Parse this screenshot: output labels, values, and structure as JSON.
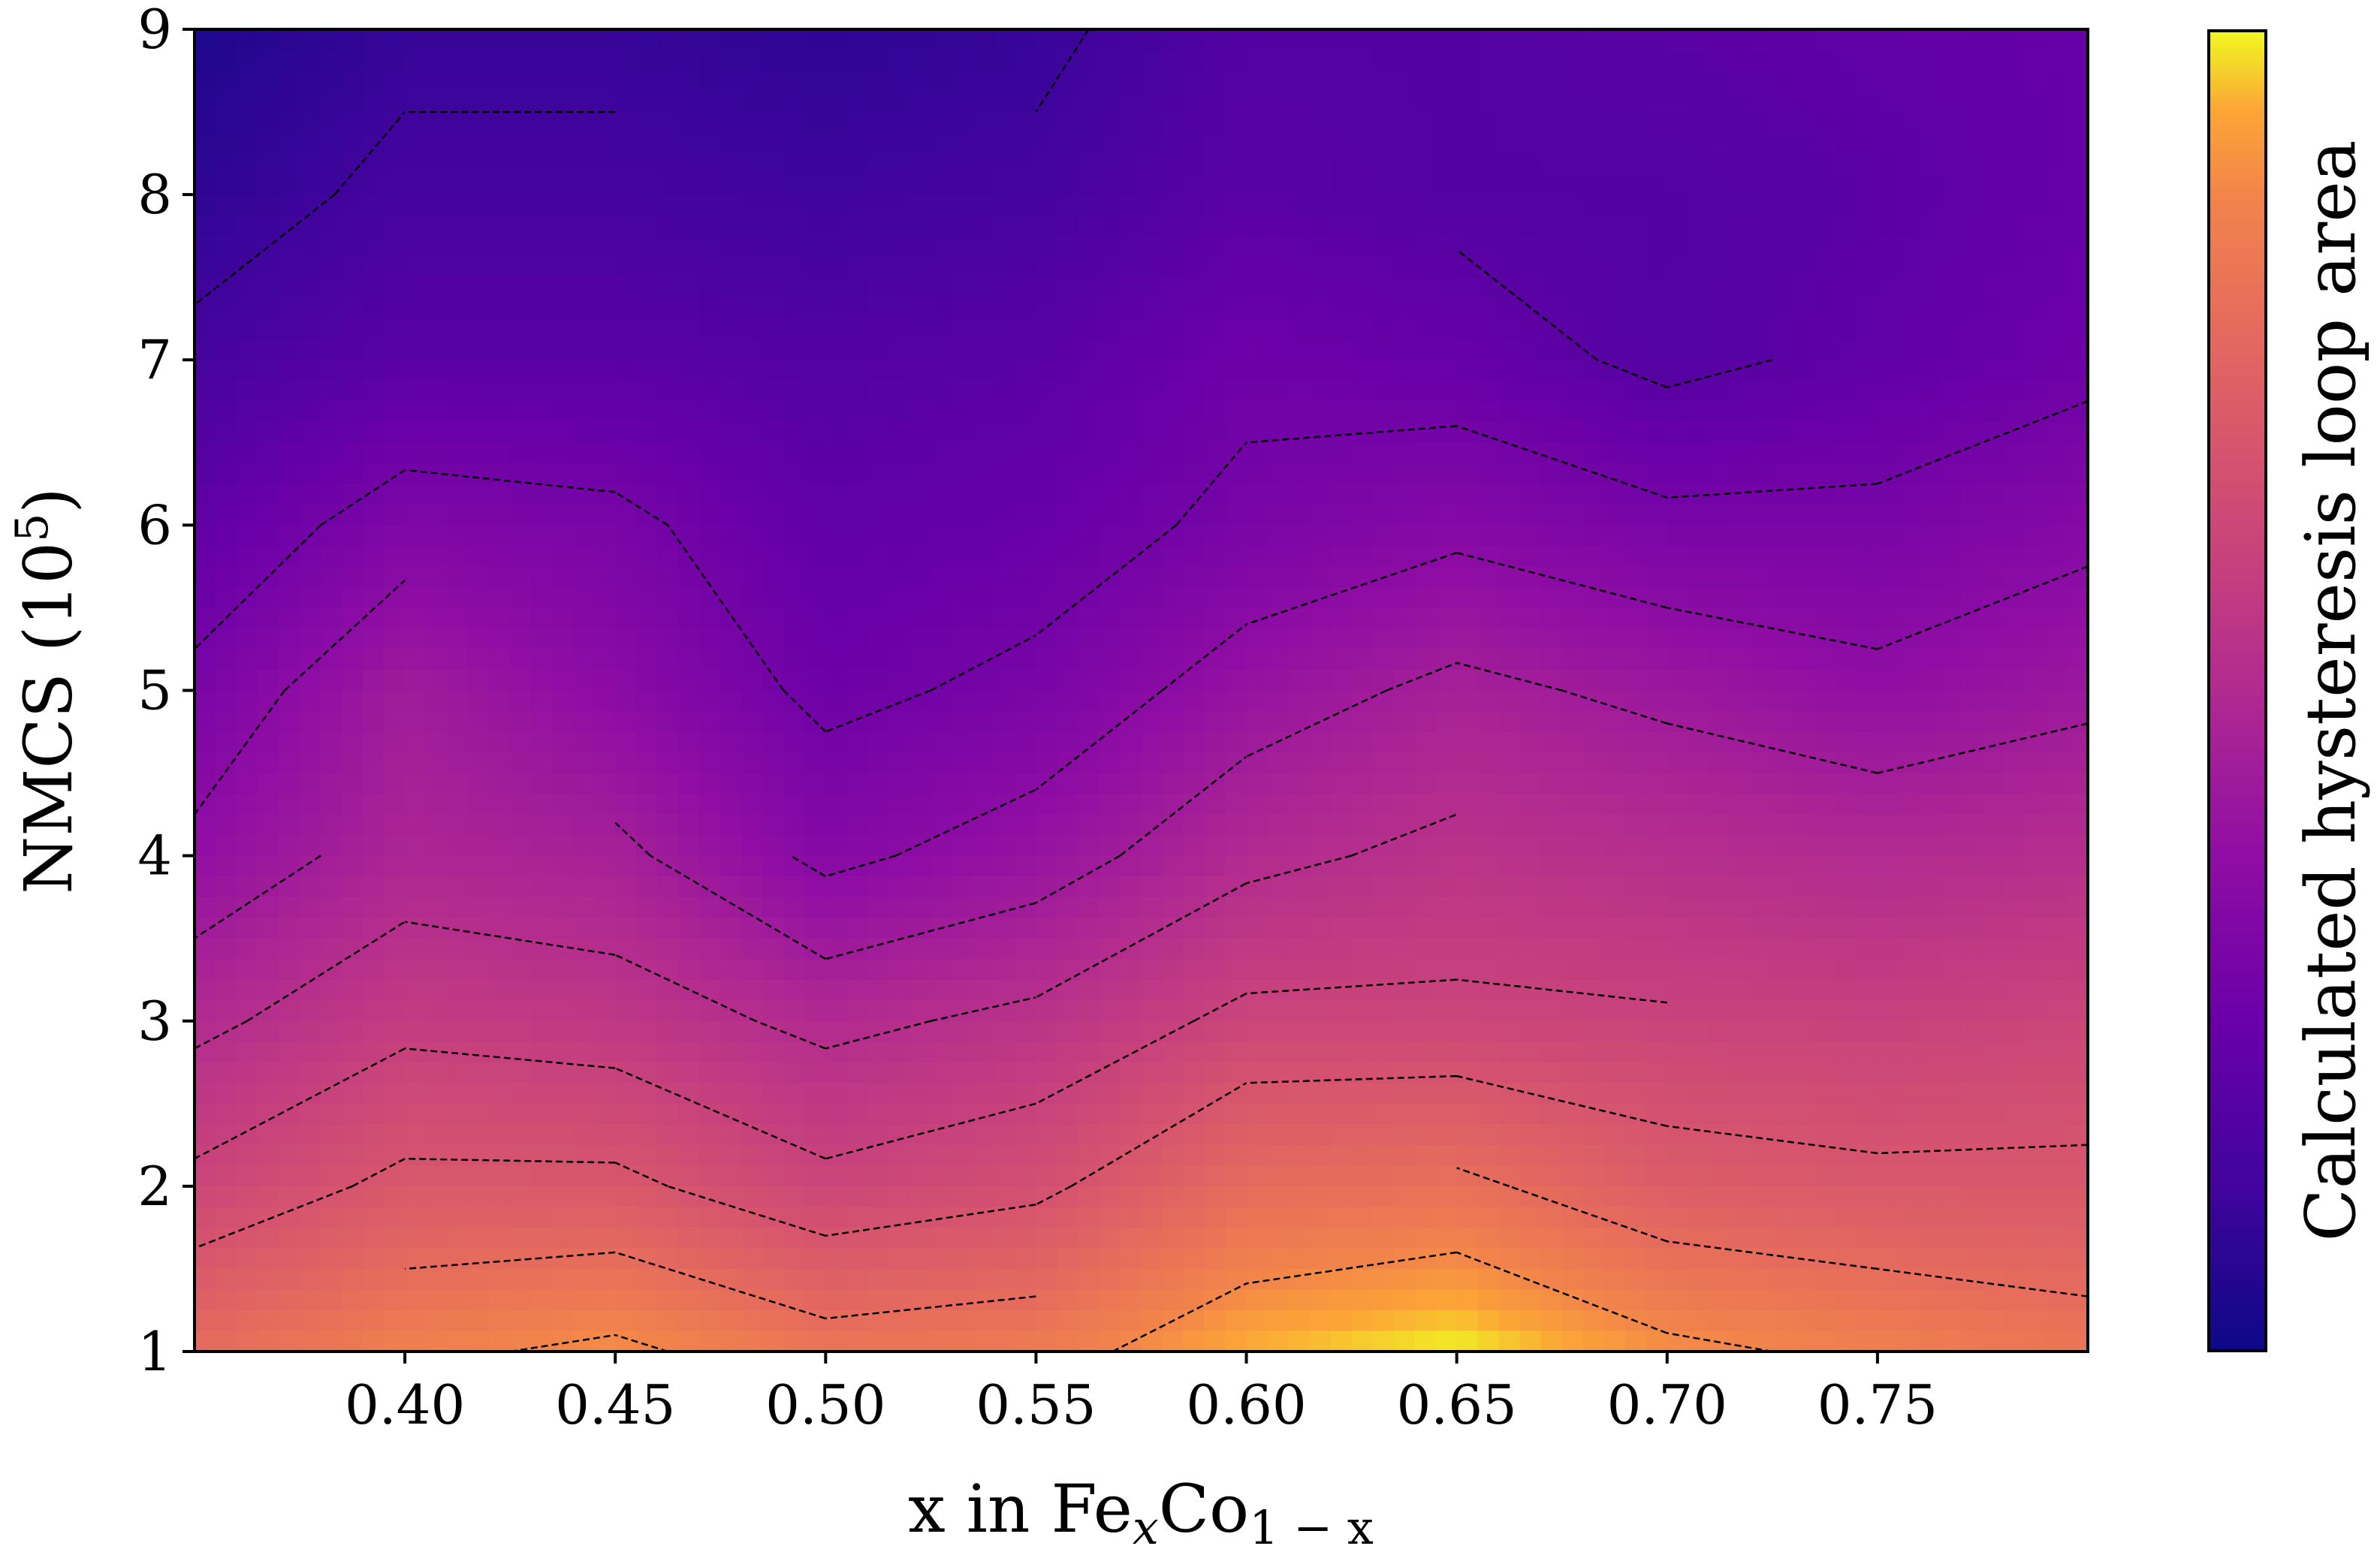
{
  "chart_data": {
    "type": "contour",
    "x": [
      0.35,
      0.4,
      0.45,
      0.5,
      0.55,
      0.6,
      0.65,
      0.7,
      0.75,
      0.8
    ],
    "y": [
      1,
      2,
      3,
      4,
      5,
      6,
      7,
      8,
      9
    ],
    "xlim": [
      0.35,
      0.8
    ],
    "ylim": [
      1,
      9
    ],
    "xticks": [
      "0.40",
      "0.45",
      "0.50",
      "0.55",
      "0.60",
      "0.65",
      "0.70",
      "0.75"
    ],
    "yticks": [
      "1",
      "2",
      "3",
      "4",
      "5",
      "6",
      "7",
      "8",
      "9"
    ],
    "xlabel": {
      "prefix": "x in Fe",
      "sub1": "x",
      "mid": "Co",
      "sub2": "1 − x"
    },
    "ylabel": {
      "prefix": "NMCS (10",
      "sup": "5",
      "suffix": ")"
    },
    "colorbar_label": "Calculated hysteresis loop area",
    "colormap": "plasma",
    "z": [
      [
        0.78,
        0.86,
        0.9,
        0.82,
        0.84,
        0.95,
        1.0,
        0.9,
        0.86,
        0.82
      ],
      [
        0.62,
        0.7,
        0.7,
        0.62,
        0.66,
        0.78,
        0.8,
        0.72,
        0.7,
        0.7
      ],
      [
        0.5,
        0.58,
        0.56,
        0.5,
        0.54,
        0.62,
        0.62,
        0.61,
        0.6,
        0.62
      ],
      [
        0.38,
        0.48,
        0.46,
        0.34,
        0.4,
        0.5,
        0.54,
        0.52,
        0.5,
        0.52
      ],
      [
        0.3,
        0.44,
        0.36,
        0.26,
        0.3,
        0.4,
        0.46,
        0.42,
        0.38,
        0.42
      ],
      [
        0.22,
        0.32,
        0.3,
        0.22,
        0.24,
        0.3,
        0.34,
        0.3,
        0.3,
        0.34
      ],
      [
        0.14,
        0.2,
        0.2,
        0.18,
        0.2,
        0.26,
        0.24,
        0.18,
        0.22,
        0.26
      ],
      [
        0.08,
        0.14,
        0.14,
        0.12,
        0.14,
        0.2,
        0.18,
        0.18,
        0.2,
        0.24
      ],
      [
        0.04,
        0.1,
        0.1,
        0.08,
        0.1,
        0.18,
        0.18,
        0.2,
        0.22,
        0.24
      ]
    ],
    "contour_levels": [
      0.12,
      0.2,
      0.28,
      0.36,
      0.44,
      0.52,
      0.6,
      0.68,
      0.78,
      0.88
    ],
    "grid": false,
    "legend": "colorbar-right"
  }
}
